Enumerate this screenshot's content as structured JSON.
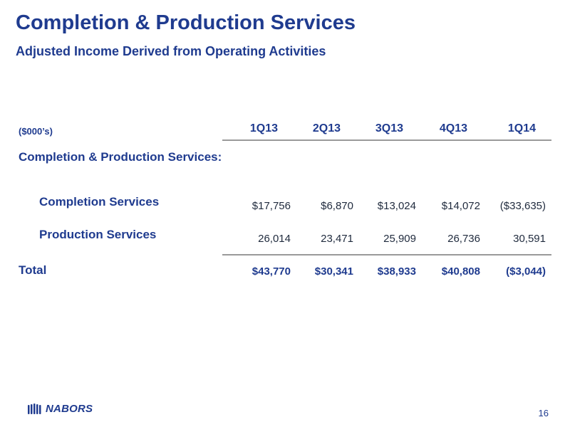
{
  "slide": {
    "title": "Completion & Production Services",
    "subtitle": "Adjusted Income Derived from Operating Activities",
    "page_number": "16"
  },
  "table": {
    "units": "($000’s)",
    "columns": [
      "1Q13",
      "2Q13",
      "3Q13",
      "4Q13",
      "1Q14"
    ],
    "section_label": "Completion & Production Services:",
    "rows": [
      {
        "label": "Completion Services",
        "values": [
          "$17,756",
          "$6,870",
          "$13,024",
          "$14,072",
          "($33,635)"
        ]
      },
      {
        "label": "Production Services",
        "values": [
          "26,014",
          "23,471",
          "25,909",
          "26,736",
          "30,591"
        ]
      }
    ],
    "total": {
      "label": "Total",
      "values": [
        "$43,770",
        "$30,341",
        "$38,933",
        "$40,808",
        "($3,044)"
      ]
    }
  },
  "footer": {
    "logo_text": "NABORS",
    "logo_icon": "nabors-stripes-icon"
  },
  "colors": {
    "accent": "#1f3b8f",
    "rule": "#9a9a9a"
  }
}
